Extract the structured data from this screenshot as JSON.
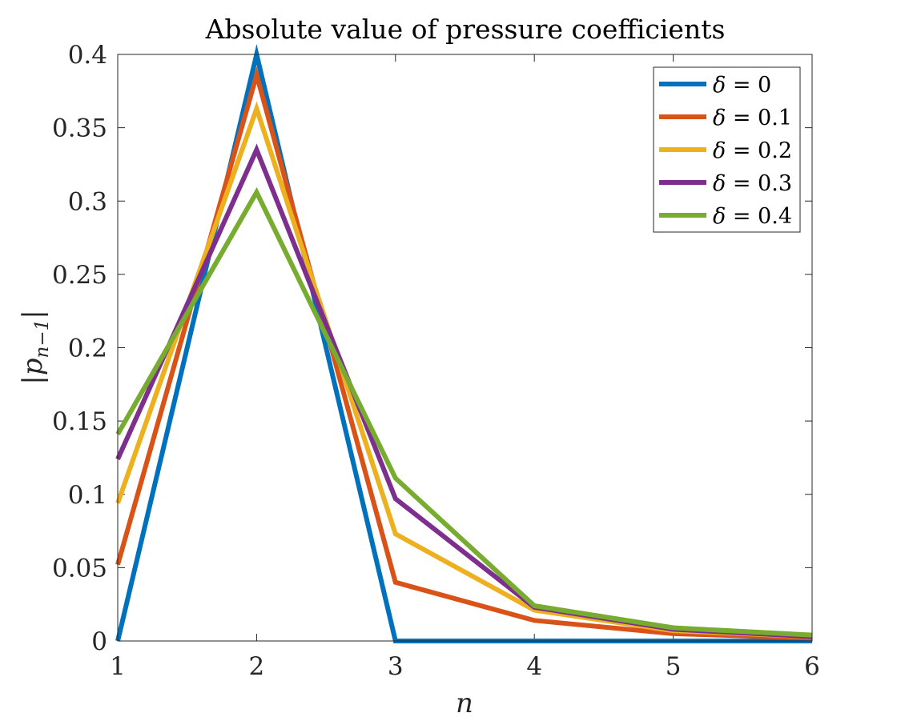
{
  "chart_data": {
    "type": "line",
    "title": "Absolute value of pressure coefficients",
    "xlabel": "n",
    "ylabel_main": "|p",
    "ylabel_sub": "n−1",
    "ylabel_close": "|",
    "x": [
      1,
      2,
      3,
      4,
      5,
      6
    ],
    "xlim": [
      1,
      6
    ],
    "ylim": [
      0,
      0.4
    ],
    "xticks": [
      1,
      2,
      3,
      4,
      5,
      6
    ],
    "xtick_labels": [
      "1",
      "2",
      "3",
      "4",
      "5",
      "6"
    ],
    "yticks": [
      0,
      0.05,
      0.1,
      0.15,
      0.2,
      0.25,
      0.3,
      0.35,
      0.4
    ],
    "ytick_labels": [
      "0",
      "0.05",
      "0.1",
      "0.15",
      "0.2",
      "0.25",
      "0.3",
      "0.35",
      "0.4"
    ],
    "grid": false,
    "legend_position": "top-right",
    "series": [
      {
        "name": "δ = 0",
        "legend_symbol": "δ",
        "legend_value": "= 0",
        "color": "#0072BD",
        "values": [
          0,
          0.4,
          0,
          0,
          0,
          0
        ]
      },
      {
        "name": "δ = 0.1",
        "legend_symbol": "δ",
        "legend_value": "= 0.1",
        "color": "#D95319",
        "values": [
          0.052,
          0.386,
          0.04,
          0.014,
          0.005,
          0.002
        ]
      },
      {
        "name": "δ = 0.2",
        "legend_symbol": "δ",
        "legend_value": "= 0.2",
        "color": "#EDB120",
        "values": [
          0.094,
          0.363,
          0.073,
          0.021,
          0.007,
          0.003
        ]
      },
      {
        "name": "δ = 0.3",
        "legend_symbol": "δ",
        "legend_value": "= 0.3",
        "color": "#7E2F8E",
        "values": [
          0.124,
          0.335,
          0.097,
          0.023,
          0.008,
          0.003
        ]
      },
      {
        "name": "δ = 0.4",
        "legend_symbol": "δ",
        "legend_value": "= 0.4",
        "color": "#77AC30",
        "values": [
          0.141,
          0.306,
          0.111,
          0.024,
          0.009,
          0.004
        ]
      }
    ]
  }
}
